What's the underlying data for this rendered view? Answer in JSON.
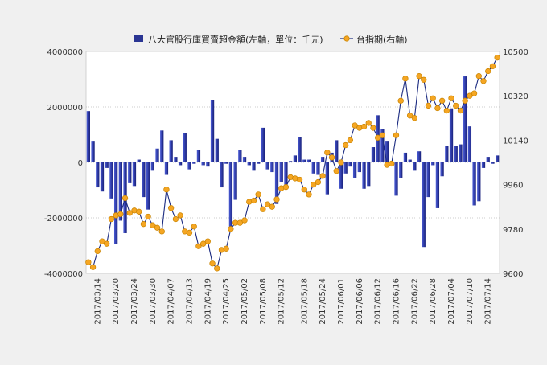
{
  "chart_data": {
    "type": "bar+line",
    "legend": {
      "bar_label": "八大官股行庫買賣超金額(左軸，單位：千元)",
      "line_label": "台指期(右軸)",
      "placement": "top"
    },
    "y_left": {
      "min": -4000000,
      "max": 4000000,
      "ticks": [
        -4000000,
        -2000000,
        0,
        2000000,
        4000000
      ]
    },
    "y_right": {
      "min": 9600,
      "max": 10500,
      "ticks": [
        9600,
        9780,
        9960,
        10140,
        10320,
        10500
      ]
    },
    "grid": "horizontal dotted",
    "x_ticks": [
      "2017/03/14",
      "2017/03/20",
      "2017/03/24",
      "2017/03/30",
      "2017/04/07",
      "2017/04/13",
      "2017/04/19",
      "2017/04/25",
      "2017/05/02",
      "2017/05/08",
      "2017/05/12",
      "2017/05/18",
      "2017/05/24",
      "2017/06/01",
      "2017/06/06",
      "2017/06/12",
      "2017/06/16",
      "2017/06/22",
      "2017/06/28",
      "2017/07/04",
      "2017/07/10",
      "2017/07/14"
    ],
    "bar_values": [
      1850000,
      750000,
      -900000,
      -1050000,
      -200000,
      -1300000,
      -2950000,
      -2100000,
      -2550000,
      -750000,
      -850000,
      100000,
      -1250000,
      -1700000,
      -300000,
      500000,
      1150000,
      -450000,
      800000,
      200000,
      -100000,
      1050000,
      -250000,
      -50000,
      450000,
      -100000,
      -150000,
      2250000,
      850000,
      -900000,
      -50000,
      -2350000,
      -1350000,
      450000,
      200000,
      -100000,
      -300000,
      -50000,
      1250000,
      -250000,
      -350000,
      -1500000,
      -700000,
      -800000,
      50000,
      250000,
      900000,
      100000,
      100000,
      -400000,
      -450000,
      200000,
      -1150000,
      350000,
      800000,
      -950000,
      -400000,
      -150000,
      -550000,
      -350000,
      -950000,
      -850000,
      550000,
      1700000,
      1200000,
      750000,
      -50000,
      -1200000,
      -550000,
      350000,
      100000,
      -300000,
      400000,
      -3050000,
      -1250000,
      -100000,
      -1650000,
      -500000,
      600000,
      1950000,
      600000,
      650000,
      3100000,
      1300000,
      -1550000,
      -1400000,
      -200000,
      200000,
      -50000,
      250000
    ],
    "line_values": [
      9645,
      9625,
      9690,
      9730,
      9720,
      9820,
      9835,
      9840,
      9905,
      9845,
      9855,
      9850,
      9800,
      9830,
      9795,
      9785,
      9770,
      9940,
      9865,
      9820,
      9835,
      9770,
      9765,
      9790,
      9710,
      9720,
      9730,
      9640,
      9620,
      9695,
      9700,
      9780,
      9805,
      9805,
      9815,
      9890,
      9895,
      9920,
      9860,
      9880,
      9870,
      9900,
      9945,
      9950,
      9990,
      9985,
      9980,
      9940,
      9920,
      9960,
      9970,
      9995,
      10090,
      10070,
      10015,
      10050,
      10120,
      10140,
      10200,
      10190,
      10195,
      10210,
      10190,
      10150,
      10160,
      10040,
      10045,
      10160,
      10300,
      10390,
      10240,
      10230,
      10400,
      10385,
      10280,
      10310,
      10270,
      10300,
      10260,
      10310,
      10280,
      10260,
      10300,
      10320,
      10330,
      10400,
      10380,
      10420,
      10440,
      10475
    ]
  }
}
